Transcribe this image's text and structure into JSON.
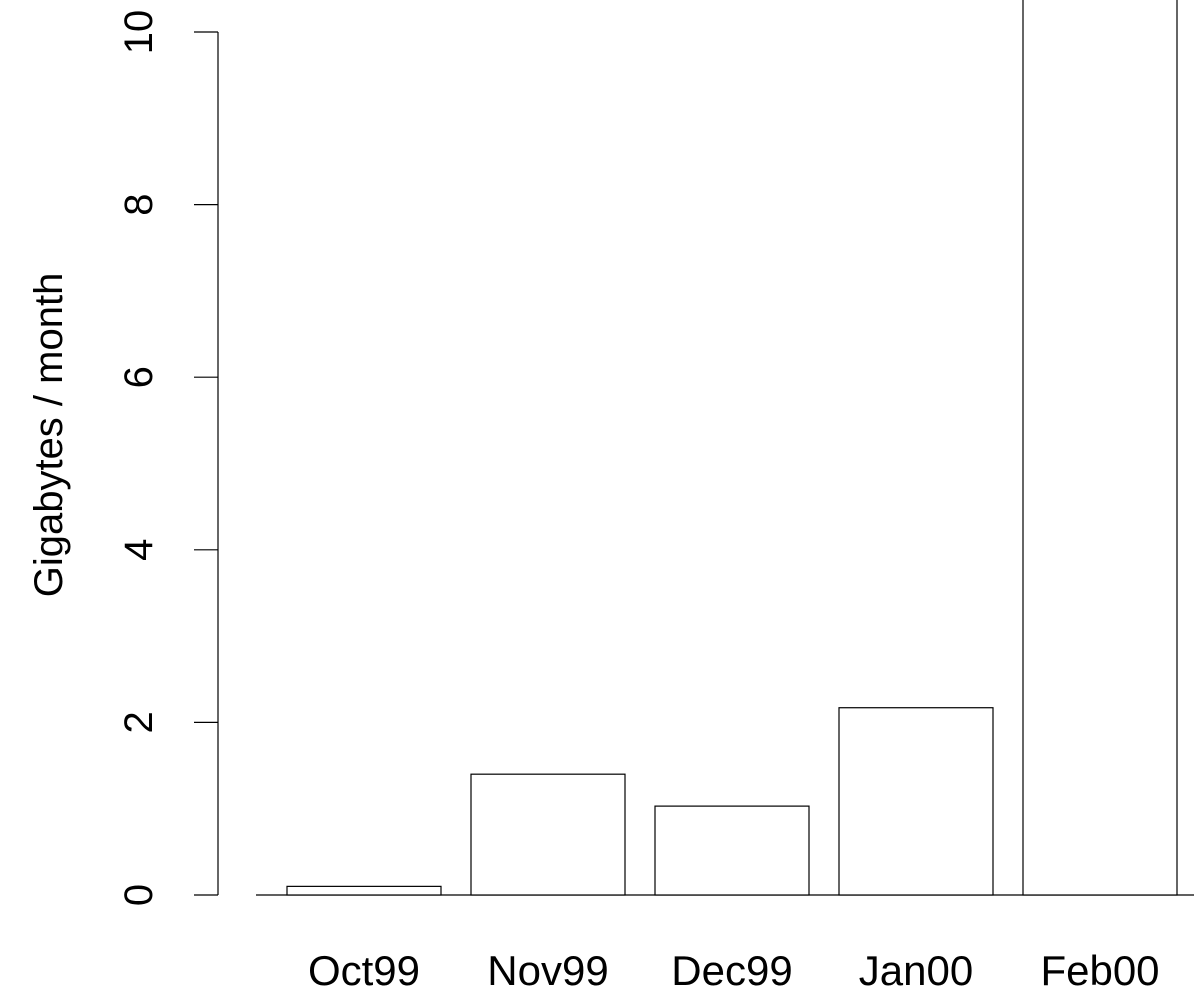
{
  "chart_data": {
    "type": "bar",
    "title": "",
    "xlabel": "",
    "ylabel": "Gigabytes / month",
    "categories": [
      "Oct99",
      "Nov99",
      "Dec99",
      "Jan00",
      "Feb00"
    ],
    "values": [
      0.1,
      1.4,
      1.03,
      2.17,
      11
    ],
    "ylim": [
      0,
      10
    ],
    "yticks": [
      0,
      2,
      4,
      6,
      8,
      10
    ],
    "ytick_labels": [
      "0",
      "2",
      "4",
      "6",
      "8",
      "10"
    ],
    "grid": false,
    "legend": "none",
    "bar_fill": "#ffffff",
    "bar_stroke": "#000000"
  }
}
